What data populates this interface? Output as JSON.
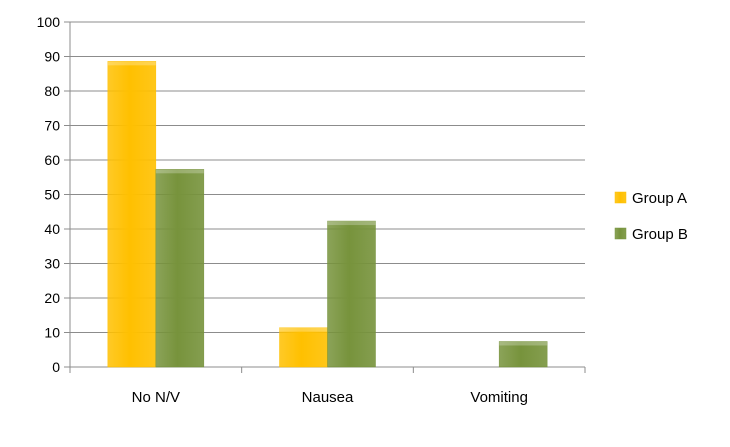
{
  "chart_data": {
    "type": "bar",
    "categories": [
      "No N/V",
      "Nausea",
      "Vomiting"
    ],
    "series": [
      {
        "name": "Group A",
        "values": [
          88.6,
          11.4,
          0
        ],
        "color": "#FFC000"
      },
      {
        "name": "Group B",
        "values": [
          57.3,
          42.3,
          7.4
        ],
        "color": "#77933C"
      }
    ],
    "title": "",
    "xlabel": "",
    "ylabel": "",
    "ylim": [
      0,
      100
    ],
    "yticks": [
      0,
      10,
      20,
      30,
      40,
      50,
      60,
      70,
      80,
      90,
      100
    ],
    "grid": true,
    "legend_position": "right"
  }
}
